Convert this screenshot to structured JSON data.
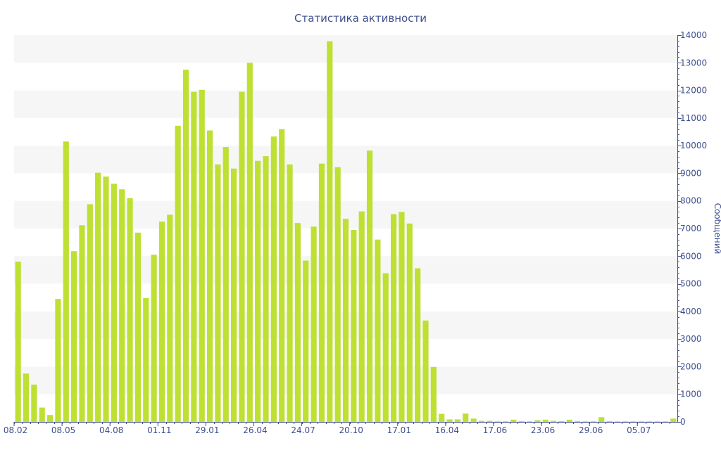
{
  "chart_data": {
    "type": "bar",
    "title": "Статистика активности",
    "xlabel": "",
    "ylabel": "Сообщений",
    "ylim": [
      0,
      14000
    ],
    "yticks": [
      0,
      1000,
      2000,
      3000,
      4000,
      5000,
      6000,
      7000,
      8000,
      9000,
      10000,
      11000,
      12000,
      13000,
      14000
    ],
    "x_tick_labels": [
      {
        "index": 0,
        "label": "08.02"
      },
      {
        "index": 6,
        "label": "08.05"
      },
      {
        "index": 12,
        "label": "04.08"
      },
      {
        "index": 18,
        "label": "01.11"
      },
      {
        "index": 24,
        "label": "29.01"
      },
      {
        "index": 30,
        "label": "26.04"
      },
      {
        "index": 36,
        "label": "24.07"
      },
      {
        "index": 42,
        "label": "20.10"
      },
      {
        "index": 48,
        "label": "17.01"
      },
      {
        "index": 54,
        "label": "16.04"
      },
      {
        "index": 60,
        "label": "17.06"
      },
      {
        "index": 66,
        "label": "23.06"
      },
      {
        "index": 72,
        "label": "29.06"
      },
      {
        "index": 78,
        "label": "05.07"
      }
    ],
    "values": [
      5800,
      1750,
      1350,
      520,
      250,
      4450,
      10150,
      6180,
      7120,
      7880,
      9020,
      8880,
      8620,
      8420,
      8100,
      6850,
      4480,
      6050,
      7250,
      7500,
      10720,
      12750,
      11950,
      12020,
      10550,
      9320,
      9950,
      9170,
      11950,
      13000,
      9450,
      9620,
      10330,
      10600,
      9320,
      7200,
      5840,
      7070,
      9350,
      13780,
      9220,
      7350,
      6950,
      7620,
      9820,
      6600,
      5380,
      7520,
      7600,
      7180,
      5560,
      3670,
      1990,
      290,
      90,
      90,
      300,
      120,
      40,
      40,
      20,
      20,
      80,
      30,
      20,
      60,
      80,
      40,
      30,
      80,
      30,
      20,
      20,
      170,
      30,
      20,
      20,
      20,
      20,
      20,
      20,
      20,
      120
    ],
    "bar_color": "#bde032",
    "band_color": "#f6f6f6",
    "axis_color": "#3e4f8c",
    "grid": true,
    "legend": "none"
  }
}
